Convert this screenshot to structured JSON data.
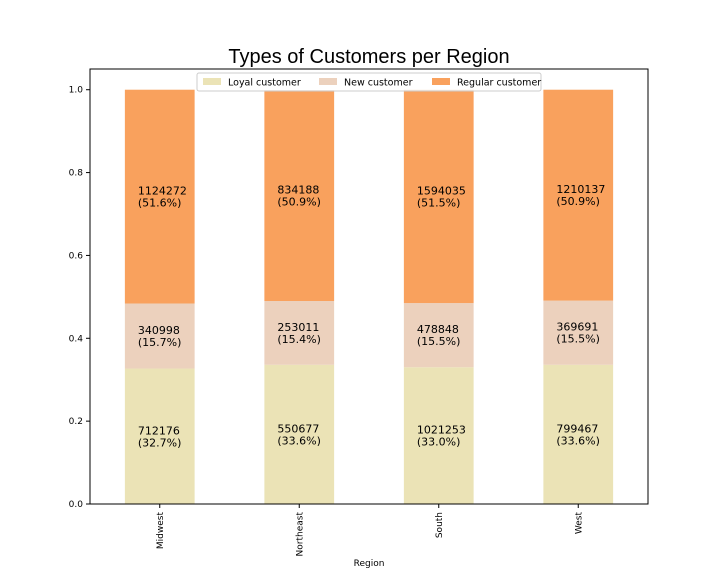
{
  "chart_data": {
    "type": "bar",
    "stacked": true,
    "normalized": true,
    "title": "Types of Customers per Region",
    "xlabel": "Region",
    "ylabel": "",
    "ylim": [
      0,
      1.05
    ],
    "yticks": [
      "0.0",
      "0.2",
      "0.4",
      "0.6",
      "0.8",
      "1.0"
    ],
    "grid": false,
    "legend_position": "top-center",
    "categories": [
      "Midwest",
      "Northeast",
      "South",
      "West"
    ],
    "series": [
      {
        "name": "Loyal customer",
        "color": "#ebe3b6",
        "counts": [
          "712176",
          "550677",
          "1021253",
          "799467"
        ],
        "percents": [
          "(32.7%)",
          "(33.6%)",
          "(33.0%)",
          "(33.6%)"
        ],
        "values": [
          0.327,
          0.336,
          0.33,
          0.336
        ]
      },
      {
        "name": "New customer",
        "color": "#ecd1bd",
        "counts": [
          "340998",
          "253011",
          "478848",
          "369691"
        ],
        "percents": [
          "(15.7%)",
          "(15.4%)",
          "(15.5%)",
          "(15.5%)"
        ],
        "values": [
          0.157,
          0.154,
          0.155,
          0.155
        ]
      },
      {
        "name": "Regular customer",
        "color": "#f9a15d",
        "counts": [
          "1124272",
          "834188",
          "1594035",
          "1210137"
        ],
        "percents": [
          "(51.6%)",
          "(50.9%)",
          "(51.5%)",
          "(50.9%)"
        ],
        "values": [
          0.516,
          0.509,
          0.515,
          0.509
        ]
      }
    ]
  }
}
